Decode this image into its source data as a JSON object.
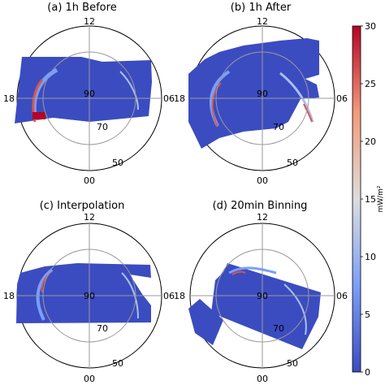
{
  "chart_data": {
    "type": "heatmap",
    "projection": "polar (magnetic latitude / magnetic local time)",
    "radial_labels": [
      "90",
      "70",
      "50"
    ],
    "mlt_labels": {
      "top": "12",
      "right": "06",
      "bottom": "00",
      "left": "18"
    },
    "colorbar": {
      "label": "mW/m²",
      "range": [
        0,
        30
      ],
      "ticks": [
        "0",
        "5",
        "10",
        "15",
        "20",
        "25",
        "30"
      ],
      "colormap": "coolwarm",
      "colors": {
        "low": "#3b4cc0",
        "mid": "#dddddd",
        "high": "#b40426"
      }
    },
    "panels": [
      {
        "id": "a",
        "title": "(a) 1h Before"
      },
      {
        "id": "b",
        "title": "(b) 1h After"
      },
      {
        "id": "c",
        "title": "(c) Interpolation"
      },
      {
        "id": "d",
        "title": "(d) 20min Binning"
      }
    ]
  }
}
